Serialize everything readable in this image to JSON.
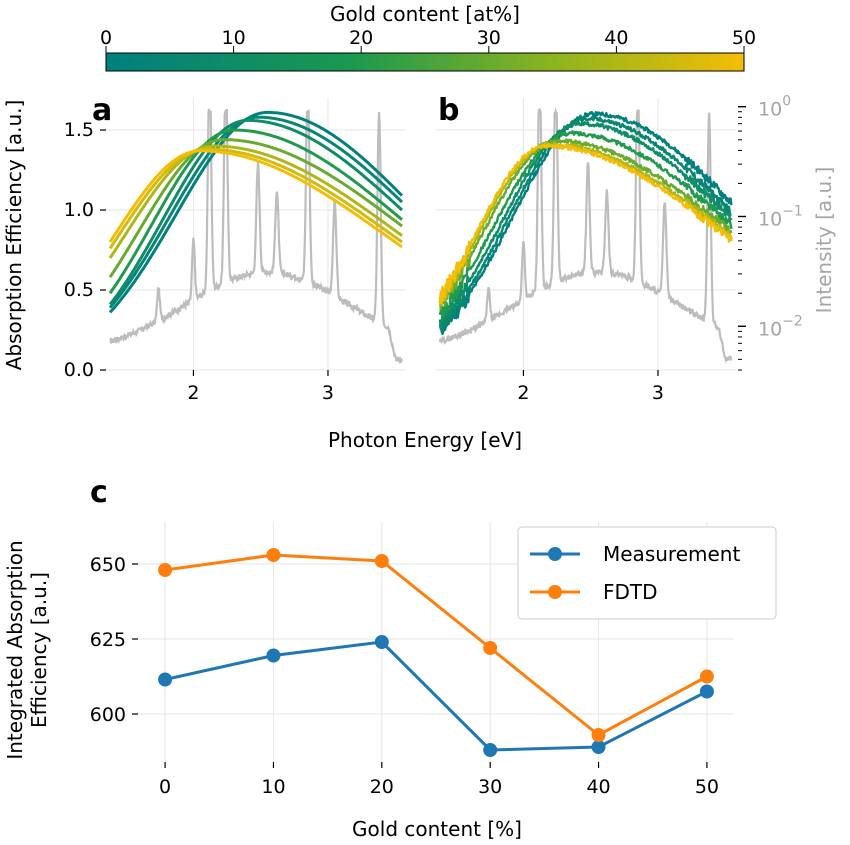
{
  "colorbar": {
    "label": "Gold content [at%]",
    "ticks": [
      "0",
      "10",
      "20",
      "30",
      "40",
      "50"
    ],
    "range": [
      0,
      50
    ],
    "colors": [
      "#00807f",
      "#1a9850",
      "#8cb41e",
      "#f5bd06"
    ]
  },
  "shared": {
    "xlabel": "Photon Energy [eV]",
    "ylabel_left": "Absorption Efficiency [a.u.]",
    "ylabel_right": "Intensity [a.u.]",
    "spectrum_color": "#bdbdbd"
  },
  "chart_data": [
    {
      "id": "a",
      "letter": "a",
      "type": "line",
      "title": "",
      "xlabel": "",
      "ylabel": "",
      "xlim": [
        1.35,
        3.58
      ],
      "ylim": [
        0,
        1.7
      ],
      "xticks": [
        2,
        3
      ],
      "xtick_labels": [
        "2",
        "3"
      ],
      "yticks": [
        0,
        0.5,
        1.0,
        1.5
      ],
      "ytick_labels": [
        "0.0",
        "0.5",
        "1.0",
        "1.5"
      ],
      "grid": true,
      "x_range": [
        1.38,
        3.55
      ],
      "series": [
        {
          "gold": 0,
          "peak_x": 2.55,
          "peak_y": 1.61,
          "start_y": 0.36,
          "end_y": 1.09
        },
        {
          "gold": 5,
          "peak_x": 2.48,
          "peak_y": 1.58,
          "start_y": 0.39,
          "end_y": 1.05
        },
        {
          "gold": 10,
          "peak_x": 2.4,
          "peak_y": 1.56,
          "start_y": 0.41,
          "end_y": 1.0
        },
        {
          "gold": 20,
          "peak_x": 2.3,
          "peak_y": 1.5,
          "start_y": 0.48,
          "end_y": 0.94
        },
        {
          "gold": 30,
          "peak_x": 2.22,
          "peak_y": 1.44,
          "start_y": 0.58,
          "end_y": 0.9
        },
        {
          "gold": 40,
          "peak_x": 2.15,
          "peak_y": 1.4,
          "start_y": 0.7,
          "end_y": 0.84
        },
        {
          "gold": 45,
          "peak_x": 2.1,
          "peak_y": 1.38,
          "start_y": 0.76,
          "end_y": 0.8
        },
        {
          "gold": 50,
          "peak_x": 2.05,
          "peak_y": 1.37,
          "start_y": 0.8,
          "end_y": 0.77
        }
      ]
    },
    {
      "id": "b",
      "letter": "b",
      "type": "line",
      "title": "",
      "xlabel": "",
      "ylabel": "",
      "xlim": [
        1.35,
        3.58
      ],
      "ylim": [
        0,
        1.7
      ],
      "xticks": [
        2,
        3
      ],
      "xtick_labels": [
        "2",
        "3"
      ],
      "right_axis": {
        "scale": "log",
        "ylim": [
          0.004,
          1.2
        ],
        "major_ticks": [
          0.01,
          0.1,
          1
        ],
        "tick_labels": [
          {
            "base": "10",
            "exp": "−2"
          },
          {
            "base": "10",
            "exp": "−1"
          },
          {
            "base": "10",
            "exp": "0"
          }
        ]
      },
      "grid": true,
      "x_range": [
        1.38,
        3.55
      ],
      "series": [
        {
          "gold": 0,
          "peak_x": 2.52,
          "peak_y": 1.6,
          "start_y": 0.25,
          "end_y": 1.04
        },
        {
          "gold": 5,
          "peak_x": 2.47,
          "peak_y": 1.57,
          "start_y": 0.27,
          "end_y": 0.98
        },
        {
          "gold": 10,
          "peak_x": 2.42,
          "peak_y": 1.54,
          "start_y": 0.3,
          "end_y": 0.94
        },
        {
          "gold": 20,
          "peak_x": 2.35,
          "peak_y": 1.48,
          "start_y": 0.35,
          "end_y": 0.9
        },
        {
          "gold": 30,
          "peak_x": 2.25,
          "peak_y": 1.43,
          "start_y": 0.4,
          "end_y": 0.86
        },
        {
          "gold": 40,
          "peak_x": 2.2,
          "peak_y": 1.41,
          "start_y": 0.43,
          "end_y": 0.83
        },
        {
          "gold": 50,
          "peak_x": 2.17,
          "peak_y": 1.4,
          "start_y": 0.45,
          "end_y": 0.81
        }
      ]
    },
    {
      "id": "c",
      "letter": "c",
      "type": "line",
      "title": "",
      "xlabel": "Gold content [%]",
      "ylabel": "Integrated Absorption\nEfficiency [a.u.]",
      "ylabel_lines": [
        "Integrated Absorption",
        "Efficiency [a.u.]"
      ],
      "categories": [
        0,
        10,
        20,
        30,
        40,
        50
      ],
      "xtick_labels": [
        "0",
        "10",
        "20",
        "30",
        "40",
        "50"
      ],
      "xlim": [
        -2.5,
        52.5
      ],
      "ylim": [
        584,
        664
      ],
      "yticks": [
        600,
        625,
        650
      ],
      "ytick_labels": [
        "600",
        "625",
        "650"
      ],
      "grid": true,
      "legend": "top-right",
      "series": [
        {
          "name": "Measurement",
          "color": "#1f77b4",
          "values": [
            611.5,
            619.5,
            624,
            588,
            589,
            607.5
          ]
        },
        {
          "name": "FDTD",
          "color": "#ff7f0e",
          "values": [
            648,
            653,
            651,
            622,
            593,
            612.5
          ]
        }
      ]
    }
  ]
}
